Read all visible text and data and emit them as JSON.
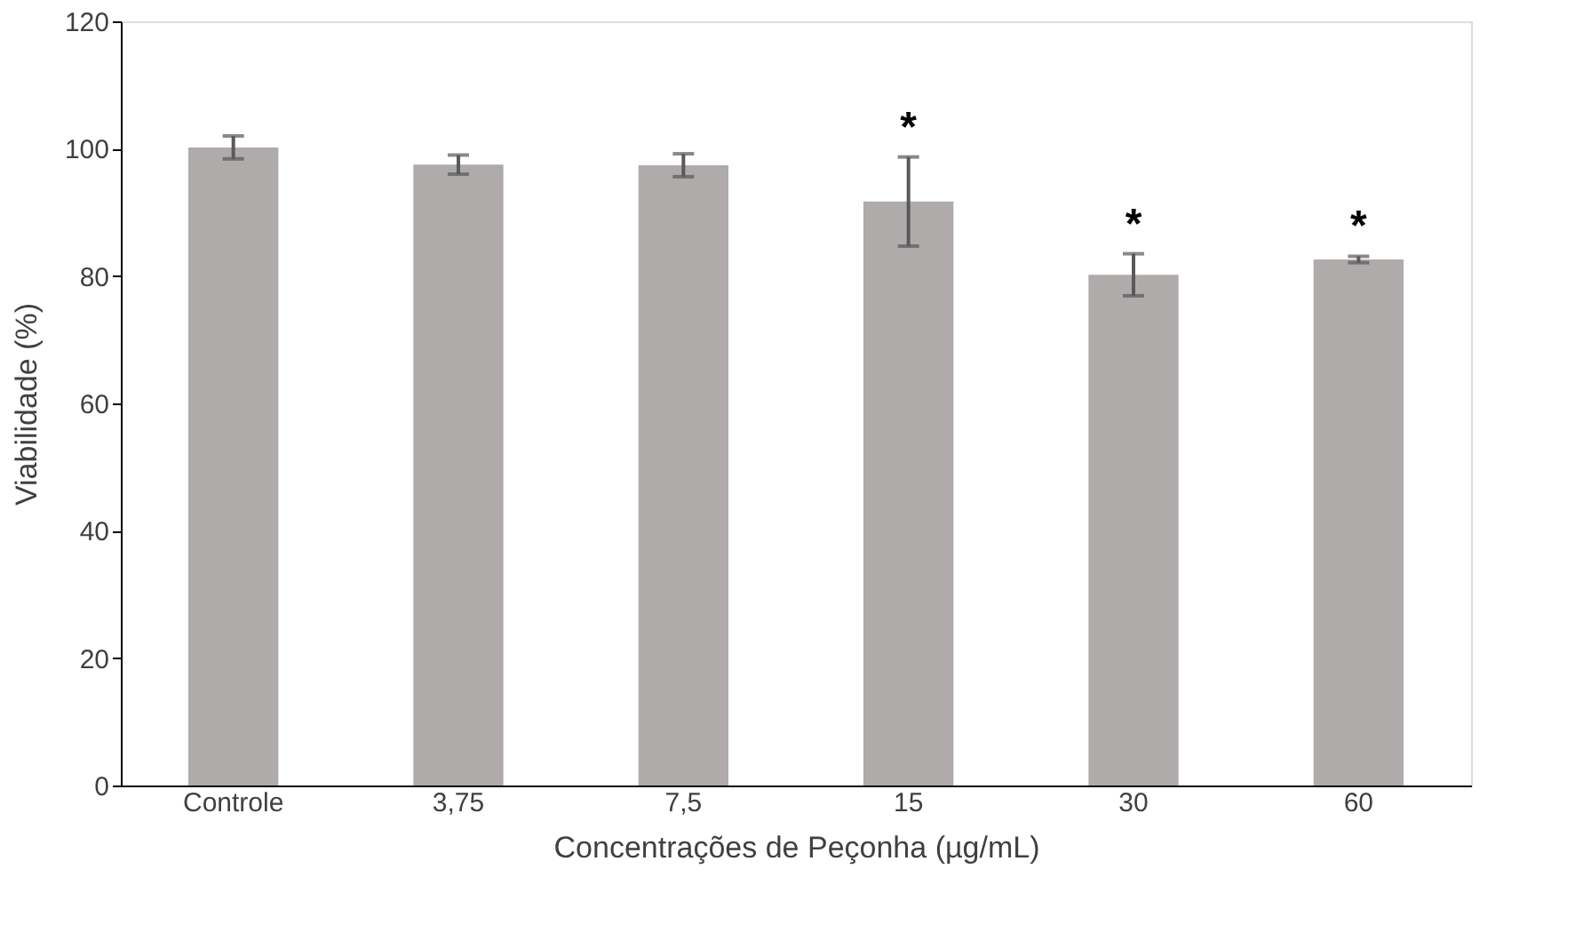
{
  "chart_data": {
    "type": "bar",
    "xlabel": "Concentrações de Peçonha (µg/mL)",
    "ylabel": "Viabilidade  (%)",
    "categories": [
      "Controle",
      "3,75",
      "7,5",
      "15",
      "30",
      "60"
    ],
    "values": [
      100.2,
      97.5,
      97.4,
      91.7,
      80.2,
      82.6
    ],
    "errors": [
      1.8,
      1.5,
      1.8,
      7.0,
      3.3,
      0.5
    ],
    "color": "#afabab",
    "ylim": [
      0,
      120
    ],
    "yticks": [
      0,
      20,
      40,
      60,
      80,
      100,
      120
    ],
    "grid": false,
    "value_labels": [
      null,
      null,
      null,
      "*",
      "*",
      "*"
    ]
  }
}
